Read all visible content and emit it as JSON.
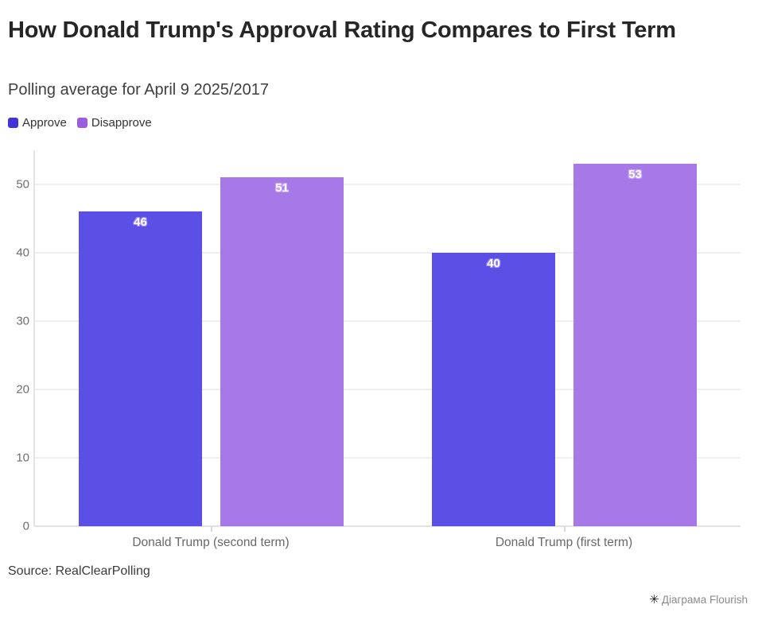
{
  "header": {
    "title": "How Donald Trump's Approval Rating Compares to First Term",
    "subtitle": "Polling average for April 9 2025/2017"
  },
  "chart_data": {
    "type": "bar",
    "title": "How Donald Trump's Approval Rating Compares to First Term",
    "subtitle": "Polling average for April 9 2025/2017",
    "categories": [
      "Donald Trump (second term)",
      "Donald Trump (first term)"
    ],
    "series": [
      {
        "name": "Approve",
        "color": "#4434d8",
        "bar_color": "#5c4fe5",
        "label_halo": "#998af1",
        "values": [
          46,
          40
        ]
      },
      {
        "name": "Disapprove",
        "color": "#9b5ce2",
        "bar_color": "#a678e8",
        "label_halo": "#c6a4f4",
        "values": [
          51,
          53
        ]
      }
    ],
    "yticks": [
      0,
      10,
      20,
      30,
      40,
      50
    ],
    "ylim": [
      0,
      55
    ],
    "grid": true,
    "legend_position": "top-left",
    "xlabel": "",
    "ylabel": "",
    "value_labels": true
  },
  "footer": {
    "source": "Source: RealClearPolling"
  },
  "attribution": {
    "logo": "✳",
    "label": "Діаграма Flourish"
  }
}
